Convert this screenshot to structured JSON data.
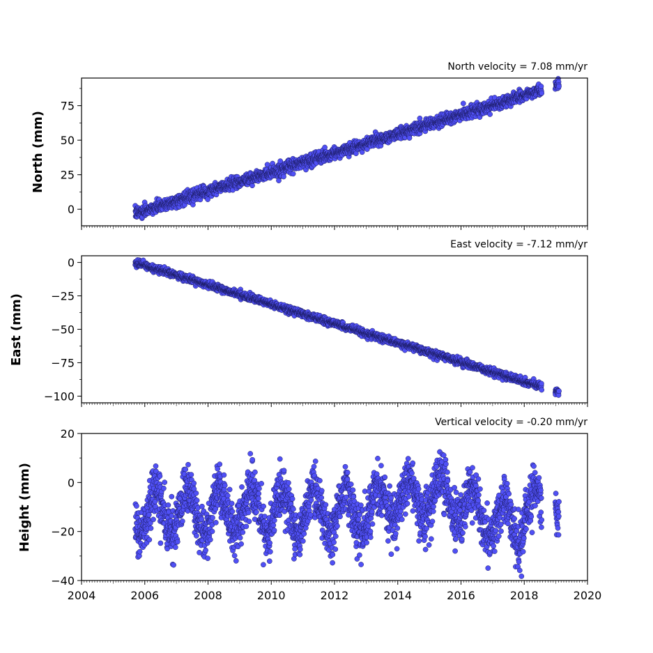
{
  "chart_data": [
    {
      "type": "scatter",
      "panel": "north",
      "ylabel": "North (mm)",
      "annotation": "North velocity = 7.08 mm/yr",
      "velocity_mm_per_yr": 7.08,
      "xlim": [
        2004,
        2020
      ],
      "ylim": [
        -12,
        95
      ],
      "yticks": [
        0,
        25,
        50,
        75
      ],
      "x_range_data": [
        2005.7,
        2019.1
      ],
      "start_value": -3,
      "end_value": 90,
      "noise_mm": 2,
      "marker_color": "#5050f5",
      "marker_edge": "#1a1a60"
    },
    {
      "type": "scatter",
      "panel": "east",
      "ylabel": "East (mm)",
      "annotation": "East velocity = -7.12 mm/yr",
      "velocity_mm_per_yr": -7.12,
      "xlim": [
        2004,
        2020
      ],
      "ylim": [
        -105,
        5
      ],
      "yticks": [
        0,
        -25,
        -50,
        -75,
        -100
      ],
      "x_range_data": [
        2005.7,
        2019.1
      ],
      "start_value": 0,
      "end_value": -97,
      "noise_mm": 1.2,
      "marker_color": "#5050f5",
      "marker_edge": "#1a1a60"
    },
    {
      "type": "scatter",
      "panel": "height",
      "ylabel": "Height (mm)",
      "annotation": "Vertical velocity = -0.20 mm/yr",
      "velocity_mm_per_yr": -0.2,
      "xlim": [
        2004,
        2020
      ],
      "ylim": [
        -40,
        20
      ],
      "yticks": [
        20,
        0,
        -20,
        -40
      ],
      "xticks": [
        2004,
        2006,
        2008,
        2010,
        2012,
        2014,
        2016,
        2018,
        2020
      ],
      "x_range_data": [
        2005.7,
        2019.1
      ],
      "mean_value": -12,
      "seasonal_amplitude_mm": 9,
      "noise_mm": 5,
      "marker_color": "#5050f5",
      "marker_edge": "#1a1a60"
    }
  ]
}
